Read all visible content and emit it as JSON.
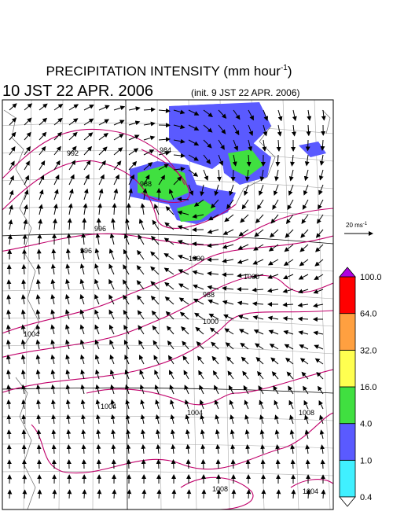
{
  "title": {
    "text": "PRECIPITATION INTENSITY (mm hour",
    "superscript": "-1",
    "closing": ")"
  },
  "valid_time": "10 JST 22 APR. 2006",
  "init_time": "(init. 9 JST 22 APR. 2006)",
  "reference_vector": {
    "label": "20 ms",
    "superscript": "-1"
  },
  "colorbar": {
    "levels": [
      "0.4",
      "1.0",
      "4.0",
      "16.0",
      "32.0",
      "64.0",
      "100.0"
    ],
    "colors": [
      "#40f0ff",
      "#5a5aff",
      "#40e040",
      "#ffff50",
      "#ffa040",
      "#ff0000"
    ],
    "under_color": "#ffffff",
    "over_color": "#b000e0"
  },
  "contour_labels": [
    "984",
    "988",
    "992",
    "996",
    "996",
    "1000",
    "1000",
    "988",
    "1000",
    "1004",
    "1004",
    "1004",
    "1008",
    "1008",
    "1004"
  ]
}
